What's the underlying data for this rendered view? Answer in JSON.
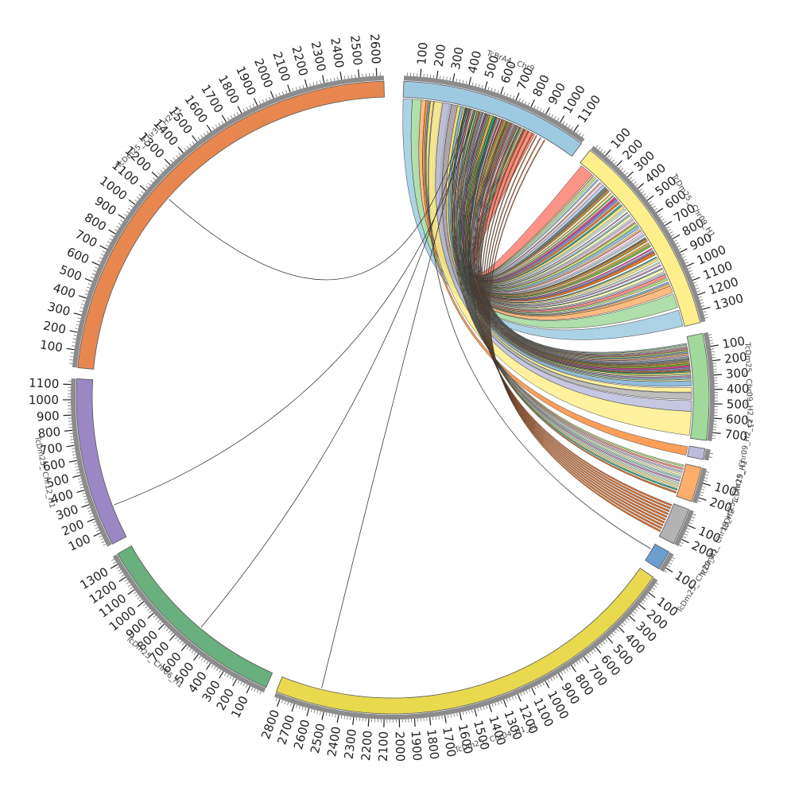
{
  "chromosomes": [
    {
      "id": "tcbra4-chr9",
      "label": "TcBrA4_ Chr9",
      "length": 1180,
      "color": "#9ecae1",
      "ticks": [
        "100",
        "200",
        "300",
        "400",
        "500",
        "600",
        "700",
        "800",
        "900",
        "1000",
        "1100"
      ]
    },
    {
      "id": "tcdm25-chr09-h1",
      "label": "TcDm25_ Chr09_H1",
      "length": 1380,
      "color": "#ffef8c",
      "ticks": [
        "100",
        "200",
        "300",
        "400",
        "500",
        "600",
        "700",
        "800",
        "900",
        "1000",
        "1100",
        "1200",
        "1300"
      ]
    },
    {
      "id": "tcdm25-chr09-h2-c1",
      "label": "TcDm25_ Chr09_H2_c1",
      "length": 760,
      "color": "#a1d99b",
      "ticks": [
        "100",
        "200",
        "300",
        "400",
        "500",
        "600",
        "700"
      ]
    },
    {
      "id": "tcdm25-chr09-h2-c2",
      "label": "TcDm25_ Chr09_H2_c2",
      "length": 60,
      "color": "#bcbddc",
      "ticks": []
    },
    {
      "id": "tcdm25-chr19-h1",
      "label": "TcDm25_ Chr19_H1",
      "length": 240,
      "color": "#fdae6b",
      "ticks": [
        "100",
        "200"
      ]
    },
    {
      "id": "tcdm25-chr19-h2",
      "label": "TcDm25_ Chr19_H2",
      "length": 250,
      "color": "#b3b3b3",
      "ticks": [
        "100",
        "200"
      ]
    },
    {
      "id": "tcdm25-chr20-h1",
      "label": "TcDm25_ Chr20_H1",
      "length": 130,
      "color": "#6a9fd0",
      "ticks": [
        "100"
      ]
    },
    {
      "id": "tcdm25-chr04-h1-c1",
      "label": "TcDm25_ Chr04_H1_c1",
      "length": 2840,
      "color": "#e8d94f",
      "ticks": [
        "100",
        "200",
        "300",
        "400",
        "500",
        "600",
        "700",
        "800",
        "900",
        "1000",
        "1100",
        "1200",
        "1300",
        "1400",
        "1500",
        "1600",
        "1700",
        "1800",
        "1900",
        "2000",
        "2100",
        "2200",
        "2300",
        "2400",
        "2500",
        "2600",
        "2700",
        "2800"
      ]
    },
    {
      "id": "tcdm25-chr06-h1",
      "label": "TcDm25_ Chr06_H1",
      "length": 1360,
      "color": "#6aaf7e",
      "ticks": [
        "100",
        "200",
        "300",
        "400",
        "500",
        "600",
        "700",
        "800",
        "900",
        "1000",
        "1100",
        "1200",
        "1300"
      ]
    },
    {
      "id": "tcdm25-chr12-h1",
      "label": "TcDm25_ Chr12_H1",
      "length": 1140,
      "color": "#9b87c4",
      "ticks": [
        "100",
        "200",
        "300",
        "400",
        "500",
        "600",
        "700",
        "800",
        "900",
        "1000",
        "1100"
      ]
    },
    {
      "id": "tcdm25-chr30-h2-c1",
      "label": "TcDm25_ Chr30_H2_c1",
      "length": 2640,
      "color": "#e7874f",
      "ticks": [
        "100",
        "200",
        "300",
        "400",
        "500",
        "600",
        "700",
        "800",
        "900",
        "1000",
        "1100",
        "1200",
        "1300",
        "1400",
        "1500",
        "1600",
        "1700",
        "1800",
        "1900",
        "2000",
        "2100",
        "2200",
        "2300",
        "2400",
        "2500",
        "2600"
      ]
    }
  ],
  "link_palette": [
    "#fdb462",
    "#80b1d3",
    "#b3de69",
    "#fb8072",
    "#bebada",
    "#ffffb3",
    "#8dd3c7",
    "#bc80bd",
    "#ccebc5",
    "#ffed6f",
    "#1b9e77",
    "#d95f02",
    "#7570b3",
    "#e7298a",
    "#66a61e",
    "#e6ab02",
    "#a6761d",
    "#666666",
    "#a6cee3",
    "#fccde5"
  ]
}
